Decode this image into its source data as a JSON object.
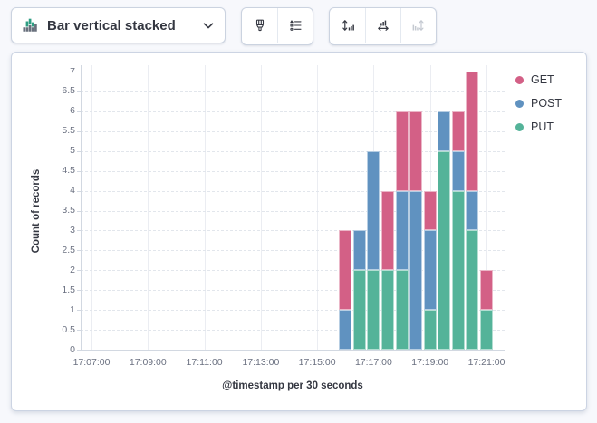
{
  "toolbar": {
    "chart_type_label": "Bar vertical stacked",
    "chart_type_icon": "stacked-bar-chart-icon",
    "chevron_icon": "chevron-down-icon",
    "style_buttons": [
      {
        "name": "visual-options",
        "icon": "paintbrush-icon",
        "disabled": false
      },
      {
        "name": "legend-options",
        "icon": "legend-list-icon",
        "disabled": false
      }
    ],
    "axis_buttons": [
      {
        "name": "left-axis",
        "icon": "left-axis-icon",
        "disabled": false
      },
      {
        "name": "bottom-axis",
        "icon": "bottom-axis-icon",
        "disabled": false
      },
      {
        "name": "right-axis",
        "icon": "right-axis-icon",
        "disabled": true
      }
    ]
  },
  "chart_data": {
    "type": "bar",
    "stacked": true,
    "orientation": "vertical",
    "xlabel": "@timestamp per 30 seconds",
    "ylabel": "Count of records",
    "ylim": [
      0,
      7
    ],
    "y_ticks": [
      0,
      0.5,
      1,
      1.5,
      2,
      2.5,
      3,
      3.5,
      4,
      4.5,
      5,
      5.5,
      6,
      6.5,
      7
    ],
    "x_axis_tick_labels": [
      "17:07:00",
      "17:09:00",
      "17:11:00",
      "17:13:00",
      "17:15:00",
      "17:17:00",
      "17:19:00",
      "17:21:00"
    ],
    "x": [
      "17:16:00",
      "17:16:30",
      "17:17:00",
      "17:17:30",
      "17:18:00",
      "17:18:30",
      "17:19:00",
      "17:19:30",
      "17:20:00",
      "17:20:30",
      "17:21:00"
    ],
    "series": [
      {
        "name": "GET",
        "color": "#D36086",
        "values": [
          2,
          0,
          0,
          2,
          2,
          2,
          1,
          0,
          1,
          3,
          1
        ]
      },
      {
        "name": "POST",
        "color": "#6092C0",
        "values": [
          1,
          1,
          3,
          0,
          2,
          4,
          2,
          1,
          1,
          1,
          0
        ]
      },
      {
        "name": "PUT",
        "color": "#54B399",
        "values": [
          0,
          2,
          2,
          2,
          2,
          0,
          1,
          5,
          4,
          3,
          1
        ]
      }
    ],
    "stack_order_bottom_to_top": [
      "PUT",
      "POST",
      "GET"
    ],
    "legend": {
      "position": "right",
      "items": [
        "GET",
        "POST",
        "PUT"
      ]
    },
    "grid": {
      "horizontal": "dashed",
      "vertical": "solid"
    }
  }
}
